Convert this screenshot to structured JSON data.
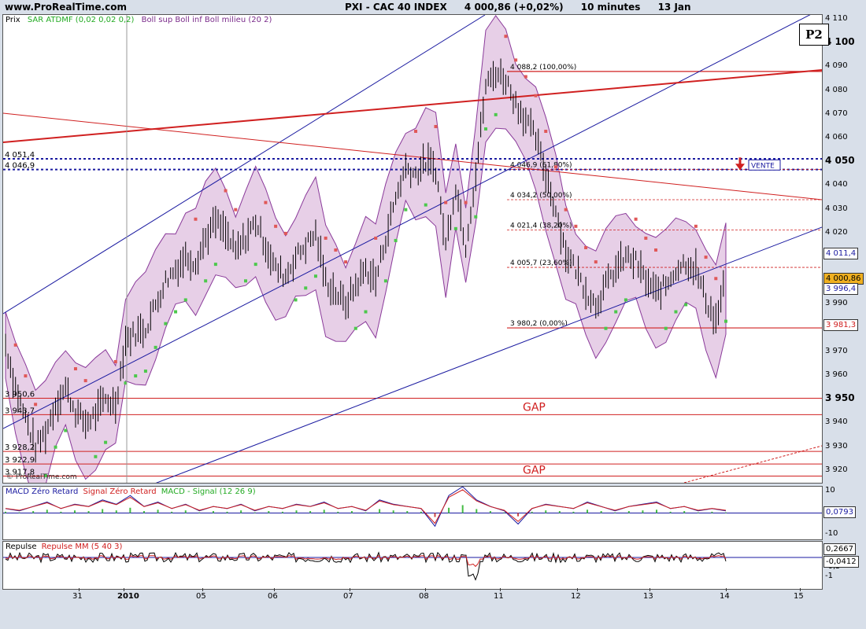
{
  "header": {
    "site": "www.ProRealTime.com",
    "symbol": "PXI - CAC 40 INDEX",
    "price": "4 000,86 (+0,02%)",
    "interval": "10 minutes",
    "date": "13 Jan"
  },
  "legend": {
    "price": "Prix",
    "sar": "SAR ATDMF (0,02 0,02 0,2)",
    "boll": "Boll sup Boll inf Boll milieu (20 2)",
    "macd_1": "MACD Zéro Retard",
    "macd_2": "Signal Zéro Retard",
    "macd_3": "MACD - Signal (12 26 9)",
    "rep_1": "Repulse",
    "rep_2": "Repulse MM (5 40 3)"
  },
  "watermark": "© ProRealTime.com",
  "badge": "P2",
  "colors": {
    "red": "#d02020",
    "blue": "#1a1aa0",
    "boll_fill": "#e7cfe7",
    "boll_line": "#8a3a9a",
    "sar_green": "#4cc84c",
    "sar_red": "#e05858"
  },
  "chart_data": [
    {
      "type": "line",
      "name": "price",
      "ylim": [
        3915,
        4112
      ],
      "x_ticks": [
        "31",
        "2010",
        "05",
        "06",
        "07",
        "08",
        "11",
        "12",
        "13",
        "14",
        "15"
      ],
      "y_ticks": [
        "4 110",
        "4 100",
        "4 090",
        "4 080",
        "4 070",
        "4 060",
        "4 050",
        "4 040",
        "4 030",
        "4 020",
        "4 010",
        "4 000",
        "3 990",
        "3 980",
        "3 970",
        "3 960",
        "3 950",
        "3 940",
        "3 930",
        "3 920"
      ],
      "y_tick_values": [
        4110,
        4100,
        4090,
        4080,
        4070,
        4060,
        4050,
        4040,
        4030,
        4020,
        4010,
        4000,
        3990,
        3980,
        3970,
        3960,
        3950,
        3940,
        3930,
        3920
      ],
      "bold_ticks": [
        "4 100",
        "4 050",
        "3 950"
      ],
      "price_path": [
        3973,
        3955,
        3942,
        3930,
        3936,
        3948,
        3955,
        3945,
        3940,
        3944,
        3950,
        3948,
        3975,
        3978,
        3980,
        3990,
        4000,
        4005,
        4010,
        4008,
        4018,
        4025,
        4020,
        4012,
        4018,
        4025,
        4015,
        4005,
        4002,
        4010,
        4015,
        4020,
        4000,
        3995,
        3990,
        3998,
        4005,
        4000,
        4018,
        4035,
        4048,
        4045,
        4050,
        4047,
        4015,
        4040,
        4015,
        4045,
        4082,
        4088,
        4085,
        4075,
        4068,
        4060,
        4045,
        4030,
        4012,
        4005,
        3996,
        3990,
        3998,
        4005,
        4010,
        4008,
        4000,
        3995,
        3998,
        4005,
        4008,
        4005,
        3992,
        3983,
        4001
      ],
      "h_levels": [
        {
          "label": "4 051,4",
          "value": 4051.4,
          "color": "#1a1aa0",
          "style": "dotted"
        },
        {
          "label": "4 046,9",
          "value": 4046.9,
          "color": "#1a1aa0",
          "style": "dotted"
        },
        {
          "label": "3 950,6",
          "value": 3950.6,
          "color": "#d02020",
          "style": "solid"
        },
        {
          "label": "3 943,7",
          "value": 3943.7,
          "color": "#d02020",
          "style": "solid"
        },
        {
          "label": "3 928,2",
          "value": 3928.2,
          "color": "#d02020",
          "style": "solid"
        },
        {
          "label": "3 922,9",
          "value": 3922.9,
          "color": "#d02020",
          "style": "solid"
        },
        {
          "label": "3 917,8",
          "value": 3917.8,
          "color": "#d02020",
          "style": "solid"
        }
      ],
      "fib_levels": [
        {
          "label": "4 088,2 (100,00%)",
          "value": 4088.2
        },
        {
          "label": "4 046,9 (61,80%)",
          "value": 4046.9
        },
        {
          "label": "4 034,2 (50,00%)",
          "value": 4034.2
        },
        {
          "label": "4 021,4 (38,20%)",
          "value": 4021.4
        },
        {
          "label": "4 005,7 (23,60%)",
          "value": 4005.7
        },
        {
          "label": "3 980,2 (0,00%)",
          "value": 3980.2
        }
      ],
      "gaps": [
        {
          "label": "GAP",
          "value": 3947
        },
        {
          "label": "GAP",
          "value": 3920.5
        }
      ],
      "signal": "VENTE",
      "boxes": [
        {
          "label": "4 011,4",
          "value": 4011.4,
          "bg": "#ffffff",
          "fg": "#1a1aa0"
        },
        {
          "label": "4 000,86",
          "value": 4000.86,
          "bg": "#f0b020",
          "fg": "#000000"
        },
        {
          "label": "3 996,4",
          "value": 3996.4,
          "bg": "#ffffff",
          "fg": "#1a1aa0"
        },
        {
          "label": "3 981,3",
          "value": 3981.3,
          "bg": "#ffffff",
          "fg": "#d02020"
        }
      ]
    },
    {
      "type": "line",
      "name": "macd",
      "ylim": [
        -12,
        12
      ],
      "y_ticks": [
        "10",
        "-10"
      ],
      "y_tick_values": [
        10,
        -10
      ],
      "series_values": [
        2,
        1,
        3,
        5,
        2,
        4,
        3,
        6,
        4,
        8,
        3,
        5,
        2,
        4,
        1,
        3,
        2,
        4,
        1,
        3,
        2,
        4,
        3,
        5,
        2,
        3,
        1,
        6,
        4,
        3,
        2,
        -6,
        8,
        12,
        6,
        3,
        1,
        -5,
        2,
        4,
        3,
        2,
        5,
        3,
        1,
        3,
        4,
        5,
        2,
        3,
        1,
        2,
        1
      ],
      "box": {
        "label": "0,0793",
        "value": 0.0793
      }
    },
    {
      "type": "line",
      "name": "repulse",
      "ylim": [
        -1.6,
        0.8
      ],
      "y_ticks": [
        "0,5",
        "-0,5",
        "-1"
      ],
      "y_tick_values": [
        0.5,
        -0.5,
        -1
      ],
      "box_top": {
        "label": "0,2667",
        "value": 0.2667
      },
      "box_bottom": {
        "label": "-0,0412",
        "value": -0.0412
      }
    }
  ]
}
